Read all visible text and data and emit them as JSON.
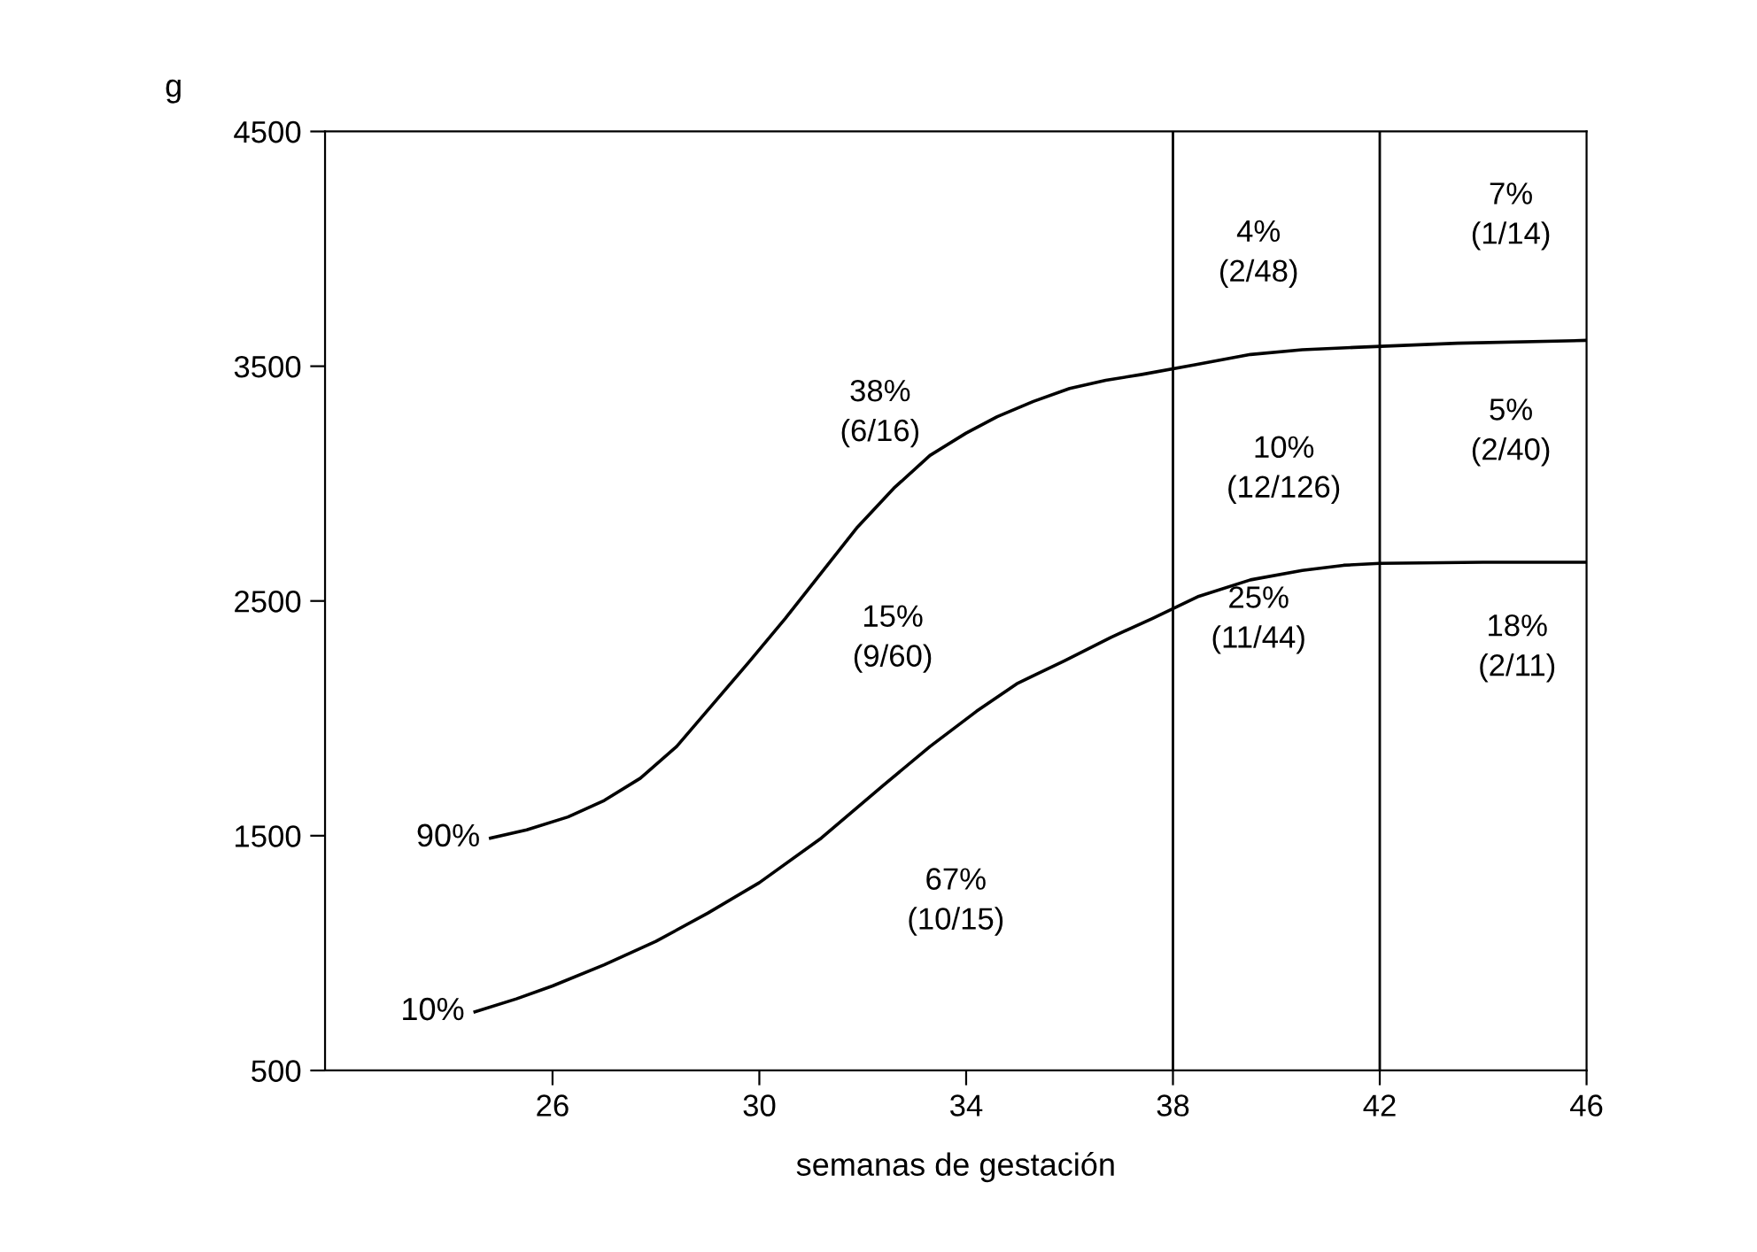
{
  "chart_data": {
    "type": "line",
    "xlabel": "semanas de gestación",
    "ylabel": "g",
    "xlim": [
      21.6,
      46
    ],
    "xticks": [
      26,
      30,
      34,
      38,
      42,
      46
    ],
    "ylim": [
      500,
      4500
    ],
    "yticks": [
      500,
      1500,
      2500,
      3500,
      4500
    ],
    "series": [
      {
        "name": "90%",
        "color": "#000000",
        "x": [
          24.8,
          25.5,
          26.3,
          27.0,
          27.7,
          28.4,
          29.1,
          29.8,
          30.5,
          31.2,
          31.9,
          32.6,
          33.3,
          34.0,
          34.6,
          35.3,
          36.0,
          36.7,
          37.4,
          38.4,
          39.5,
          40.5,
          41.5,
          43.5,
          46
        ],
        "values": [
          1490,
          1525,
          1580,
          1650,
          1745,
          1880,
          2060,
          2240,
          2425,
          2620,
          2815,
          2980,
          3120,
          3215,
          3285,
          3350,
          3405,
          3440,
          3465,
          3505,
          3550,
          3570,
          3580,
          3598,
          3610
        ]
      },
      {
        "name": "10%",
        "color": "#000000",
        "x": [
          24.5,
          25.3,
          26.0,
          27.0,
          28.0,
          29.0,
          30.0,
          31.2,
          32.4,
          33.3,
          34.2,
          35.0,
          35.9,
          36.8,
          37.6,
          38.5,
          39.5,
          40.5,
          41.3,
          42.0,
          44.0,
          46
        ],
        "values": [
          750,
          805,
          860,
          950,
          1050,
          1170,
          1300,
          1490,
          1715,
          1880,
          2030,
          2150,
          2245,
          2345,
          2425,
          2520,
          2590,
          2630,
          2652,
          2660,
          2665,
          2665
        ]
      }
    ],
    "ref_lines": [
      {
        "axis": "x",
        "value": 38,
        "color": "#000000"
      },
      {
        "axis": "x",
        "value": 42,
        "color": "#000000"
      }
    ],
    "annotations": [
      "4%\n(2/48)",
      "7%\n(1/14)",
      "38%\n(6/16)",
      "5%\n(2/40)",
      "10%\n(12/126)",
      "15%\n(9/60)",
      "25%\n(11/44)",
      "18%\n(2/11)",
      "67%\n(10/15)"
    ],
    "grid": false,
    "legend": false,
    "marker": "none",
    "line_style": "solid"
  }
}
